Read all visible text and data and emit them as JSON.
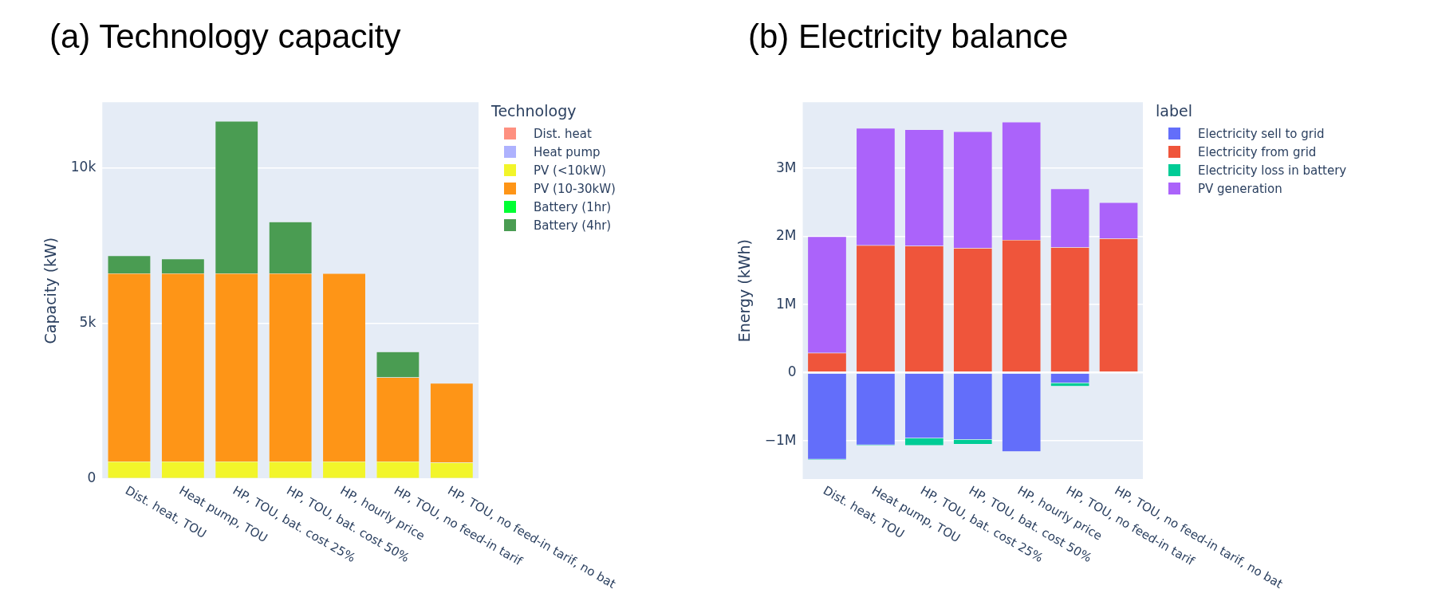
{
  "chart_data": [
    {
      "type": "bar",
      "title": "(a) Technology capacity",
      "ylabel": "Capacity (kW)",
      "legend_title": "Technology",
      "legend": "right",
      "stacked": true,
      "grid": "y",
      "categories": [
        "Dist. heat, TOU",
        "Heat pump, TOU",
        "HP, TOU, bat. cost 25%",
        "HP, TOU, bat. cost 50%",
        "HP, hourly price",
        "HP, TOU, no feed-in tarif",
        "HP, TOU, no feed-in tarif, no bat"
      ],
      "ylim": [
        0,
        12100
      ],
      "yticks": [
        0,
        {
          "value": 5000,
          "label": "5k"
        },
        {
          "value": 10000,
          "label": "10k"
        }
      ],
      "series": [
        {
          "name": "Dist. heat",
          "color": "#fe9080",
          "values": [
            null,
            null,
            null,
            null,
            null,
            null,
            null
          ]
        },
        {
          "name": "Heat pump",
          "color": "#aeb2fe",
          "values": [
            null,
            null,
            null,
            null,
            null,
            null,
            null
          ]
        },
        {
          "name": "PV (<10kW)",
          "color": "#f2f52a",
          "values": [
            560,
            560,
            560,
            560,
            560,
            560,
            530
          ]
        },
        {
          "name": "PV (10-30kW)",
          "color": "#fe9517",
          "values": [
            6040,
            6040,
            6040,
            6040,
            6040,
            2700,
            2550
          ]
        },
        {
          "name": "Battery (1hr)",
          "color": "#00ff33",
          "values": [
            null,
            null,
            null,
            null,
            null,
            null,
            null
          ]
        },
        {
          "name": "Battery (4hr)",
          "color": "#4a9c52",
          "values": [
            570,
            470,
            4890,
            1660,
            null,
            830,
            null
          ]
        }
      ]
    },
    {
      "type": "bar",
      "title": "(b) Electricity balance",
      "ylabel": "Energy (kWh)",
      "legend_title": "label",
      "legend": "right",
      "stacked": true,
      "grid": "y",
      "categories": [
        "Dist. heat, TOU",
        "Heat pump, TOU",
        "HP, TOU, bat. cost 25%",
        "HP, TOU, bat. cost 50%",
        "HP, hourly price",
        "HP, TOU, no feed-in tarif",
        "HP, TOU, no feed-in tarif, no bat"
      ],
      "ylim": [
        -1560000,
        3970000
      ],
      "yticks": [
        {
          "value": -1000000,
          "label": "−1M"
        },
        0,
        {
          "value": 1000000,
          "label": "1M"
        },
        {
          "value": 2000000,
          "label": "2M"
        },
        {
          "value": 3000000,
          "label": "3M"
        }
      ],
      "series": [
        {
          "name": "Electricity sell to grid",
          "color": "#636efa",
          "values": [
            -1270000,
            -1060000,
            -960000,
            -980000,
            -1160000,
            -150000,
            null
          ]
        },
        {
          "name": "Electricity from grid",
          "color": "#ef553b",
          "values": [
            290000,
            1870000,
            1860000,
            1830000,
            1950000,
            1840000,
            1970000
          ]
        },
        {
          "name": "Electricity loss in battery",
          "color": "#00cc96",
          "values": [
            -10000,
            -10000,
            -110000,
            -70000,
            null,
            -50000,
            null
          ]
        },
        {
          "name": "PV generation",
          "color": "#ab63fa",
          "values": [
            1710000,
            1720000,
            1710000,
            1710000,
            1730000,
            860000,
            530000
          ]
        }
      ]
    }
  ]
}
